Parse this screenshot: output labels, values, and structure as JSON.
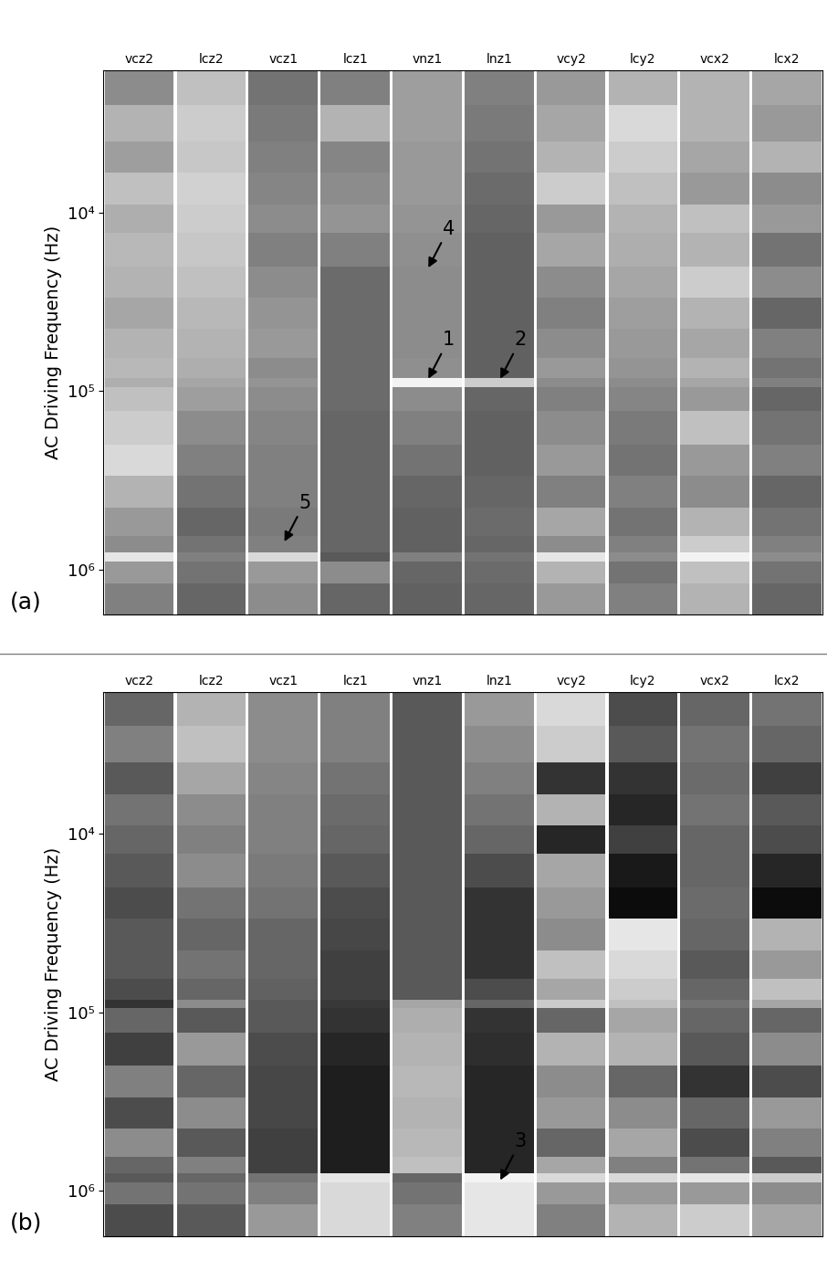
{
  "chart_data": [
    {
      "type": "heatmap",
      "panel_label": "(a)",
      "ylabel": "AC Driving Frequency (Hz)",
      "categories": [
        "vcz2",
        "lcz2",
        "vcz1",
        "lcz1",
        "vnz1",
        "lnz1",
        "vcy2",
        "lcy2",
        "vcx2",
        "lcx2"
      ],
      "log": "y",
      "ylim": [
        1800000,
        1600
      ],
      "yticks": [
        {
          "value": 10000,
          "label": "10⁴"
        },
        {
          "value": 100000,
          "label": "10⁵"
        },
        {
          "value": 1000000,
          "label": "10⁶"
        }
      ],
      "y_edges": [
        1600,
        2500,
        4000,
        6000,
        9000,
        13000,
        20000,
        30000,
        45000,
        65000,
        85000,
        95000,
        130000,
        200000,
        300000,
        450000,
        650000,
        800000,
        900000,
        1200000,
        1800000
      ],
      "value_range": [
        0,
        100
      ],
      "cells": [
        [
          55,
          70,
          62,
          75,
          68,
          72,
          70,
          65,
          70,
          72,
          68,
          75,
          80,
          85,
          70,
          60,
          55,
          90,
          60,
          50
        ],
        [
          75,
          80,
          78,
          82,
          80,
          78,
          75,
          72,
          70,
          68,
          65,
          62,
          55,
          50,
          45,
          40,
          45,
          50,
          45,
          40
        ],
        [
          45,
          48,
          50,
          52,
          55,
          50,
          55,
          58,
          60,
          55,
          58,
          55,
          52,
          50,
          50,
          48,
          50,
          85,
          60,
          55
        ],
        [
          50,
          70,
          52,
          55,
          58,
          50,
          42,
          42,
          42,
          42,
          42,
          42,
          40,
          40,
          40,
          40,
          40,
          35,
          55,
          40
        ],
        [
          62,
          62,
          60,
          60,
          58,
          56,
          55,
          55,
          55,
          56,
          95,
          55,
          50,
          45,
          40,
          38,
          38,
          50,
          40,
          38
        ],
        [
          50,
          48,
          45,
          42,
          40,
          38,
          38,
          38,
          38,
          38,
          80,
          40,
          38,
          38,
          40,
          42,
          40,
          45,
          42,
          40
        ],
        [
          60,
          65,
          70,
          80,
          60,
          65,
          55,
          50,
          55,
          60,
          55,
          50,
          55,
          60,
          50,
          65,
          55,
          90,
          70,
          60
        ],
        [
          70,
          85,
          80,
          75,
          70,
          68,
          65,
          62,
          60,
          58,
          55,
          52,
          48,
          45,
          50,
          45,
          50,
          55,
          45,
          50
        ],
        [
          70,
          70,
          65,
          60,
          75,
          70,
          80,
          70,
          65,
          70,
          65,
          60,
          75,
          60,
          55,
          70,
          80,
          95,
          75,
          70
        ],
        [
          65,
          60,
          70,
          55,
          60,
          45,
          55,
          40,
          50,
          45,
          50,
          40,
          45,
          50,
          40,
          45,
          50,
          55,
          45,
          40
        ]
      ],
      "annotations": [
        {
          "text": "4",
          "category": "vnz1",
          "y": 21000
        },
        {
          "text": "1",
          "category": "vnz1",
          "y": 88000
        },
        {
          "text": "2",
          "category": "lnz1",
          "y": 88000
        },
        {
          "text": "5",
          "category": "vcz1",
          "y": 720000
        }
      ]
    },
    {
      "type": "heatmap",
      "panel_label": "(b)",
      "ylabel": "AC Driving Frequency (Hz)",
      "categories": [
        "vcz2",
        "lcz2",
        "vcz1",
        "lcz1",
        "vnz1",
        "lnz1",
        "vcy2",
        "lcy2",
        "vcx2",
        "lcx2"
      ],
      "log": "y",
      "ylim": [
        1800000,
        1600
      ],
      "yticks": [
        {
          "value": 10000,
          "label": "10⁴"
        },
        {
          "value": 100000,
          "label": "10⁵"
        },
        {
          "value": 1000000,
          "label": "10⁶"
        }
      ],
      "y_edges": [
        1600,
        2500,
        4000,
        6000,
        9000,
        13000,
        20000,
        30000,
        45000,
        65000,
        85000,
        95000,
        130000,
        200000,
        300000,
        450000,
        650000,
        800000,
        900000,
        1200000,
        1800000
      ],
      "value_range": [
        0,
        100
      ],
      "cells": [
        [
          40,
          50,
          35,
          45,
          40,
          35,
          30,
          35,
          35,
          30,
          20,
          40,
          25,
          50,
          30,
          55,
          40,
          35,
          45,
          30
        ],
        [
          70,
          75,
          65,
          55,
          50,
          55,
          45,
          40,
          45,
          40,
          55,
          35,
          60,
          40,
          55,
          35,
          50,
          40,
          45,
          35
        ],
        [
          55,
          55,
          52,
          50,
          50,
          48,
          45,
          40,
          40,
          38,
          35,
          35,
          30,
          28,
          28,
          25,
          25,
          45,
          50,
          60
        ],
        [
          50,
          50,
          45,
          42,
          40,
          35,
          30,
          28,
          25,
          25,
          22,
          20,
          15,
          12,
          12,
          12,
          12,
          90,
          85,
          85
        ],
        [
          35,
          35,
          35,
          35,
          35,
          35,
          35,
          35,
          35,
          35,
          65,
          68,
          70,
          72,
          70,
          72,
          75,
          40,
          45,
          50
        ],
        [
          60,
          55,
          50,
          45,
          40,
          30,
          20,
          20,
          20,
          30,
          40,
          20,
          18,
          15,
          15,
          15,
          15,
          95,
          90,
          90
        ],
        [
          85,
          80,
          20,
          70,
          15,
          65,
          60,
          55,
          75,
          65,
          80,
          40,
          70,
          55,
          60,
          40,
          65,
          85,
          60,
          50
        ],
        [
          30,
          35,
          20,
          15,
          25,
          10,
          5,
          90,
          85,
          80,
          75,
          65,
          70,
          40,
          55,
          65,
          50,
          85,
          60,
          70
        ],
        [
          40,
          45,
          42,
          45,
          40,
          40,
          42,
          40,
          35,
          40,
          45,
          40,
          35,
          20,
          40,
          30,
          45,
          90,
          60,
          80
        ],
        [
          45,
          40,
          25,
          35,
          30,
          15,
          5,
          70,
          60,
          75,
          65,
          40,
          55,
          30,
          60,
          50,
          35,
          80,
          55,
          65
        ]
      ],
      "annotations": [
        {
          "text": "3",
          "category": "lnz1",
          "y": 900000
        }
      ]
    }
  ]
}
